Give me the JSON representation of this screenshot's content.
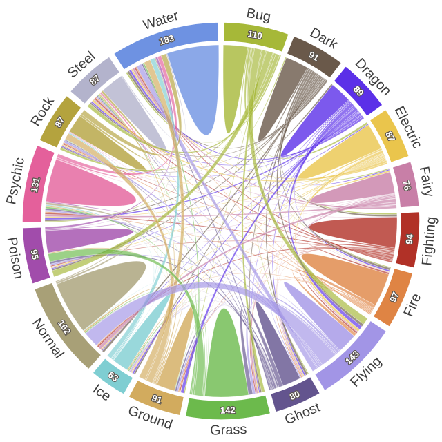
{
  "figure": {
    "background": "#ffffff",
    "label_color": "#3f3f3f",
    "value_text_color": "#ffffff",
    "value_outline_color": "#5b554e"
  },
  "chart_data": {
    "type": "chord",
    "title": "",
    "legend": "none",
    "grid": "off",
    "gap_degrees": 1.5,
    "start_angle_degrees": 0,
    "direction": "clockwise",
    "nodes": [
      {
        "name": "Bug",
        "value": 110,
        "color": "#a6b838"
      },
      {
        "name": "Dark",
        "value": 91,
        "color": "#6a594a"
      },
      {
        "name": "Dragon",
        "value": 89,
        "color": "#5b30e8"
      },
      {
        "name": "Electric",
        "value": 87,
        "color": "#eac54c"
      },
      {
        "name": "Fairy",
        "value": 76,
        "color": "#c87fa7"
      },
      {
        "name": "Fighting",
        "value": 94,
        "color": "#b13127"
      },
      {
        "name": "Fire",
        "value": 97,
        "color": "#df8444"
      },
      {
        "name": "Flying",
        "value": 143,
        "color": "#a295e6"
      },
      {
        "name": "Ghost",
        "value": 80,
        "color": "#63548e"
      },
      {
        "name": "Grass",
        "value": 142,
        "color": "#6cba4c"
      },
      {
        "name": "Ground",
        "value": 91,
        "color": "#d2ab5e"
      },
      {
        "name": "Ice",
        "value": 63,
        "color": "#7fced2"
      },
      {
        "name": "Normal",
        "value": 162,
        "color": "#a8a077"
      },
      {
        "name": "Poison",
        "value": 95,
        "color": "#a14cab"
      },
      {
        "name": "Psychic",
        "value": 131,
        "color": "#e4609b"
      },
      {
        "name": "Rock",
        "value": 87,
        "color": "#b4a33e"
      },
      {
        "name": "Steel",
        "value": 87,
        "color": "#b3b3cc"
      },
      {
        "name": "Water",
        "value": 183,
        "color": "#6e92e2"
      }
    ],
    "links_estimated_from_pixels": true,
    "links": [
      [
        "Bug",
        "Dark",
        2
      ],
      [
        "Bug",
        "Electric",
        4
      ],
      [
        "Bug",
        "Fairy",
        2
      ],
      [
        "Bug",
        "Fighting",
        3
      ],
      [
        "Bug",
        "Fire",
        2
      ],
      [
        "Bug",
        "Flying",
        13
      ],
      [
        "Bug",
        "Ghost",
        2
      ],
      [
        "Bug",
        "Grass",
        6
      ],
      [
        "Bug",
        "Ground",
        2
      ],
      [
        "Bug",
        "Poison",
        12
      ],
      [
        "Bug",
        "Psychic",
        2
      ],
      [
        "Bug",
        "Rock",
        4
      ],
      [
        "Bug",
        "Steel",
        7
      ],
      [
        "Bug",
        "Water",
        3
      ],
      [
        "Dark",
        "Dragon",
        3
      ],
      [
        "Dark",
        "Fighting",
        4
      ],
      [
        "Dark",
        "Fire",
        4
      ],
      [
        "Dark",
        "Flying",
        5
      ],
      [
        "Dark",
        "Ghost",
        4
      ],
      [
        "Dark",
        "Grass",
        3
      ],
      [
        "Dark",
        "Ice",
        3
      ],
      [
        "Dark",
        "Normal",
        4
      ],
      [
        "Dark",
        "Poison",
        3
      ],
      [
        "Dark",
        "Psychic",
        3
      ],
      [
        "Dark",
        "Rock",
        2
      ],
      [
        "Dark",
        "Steel",
        3
      ],
      [
        "Dark",
        "Water",
        4
      ],
      [
        "Dragon",
        "Electric",
        2
      ],
      [
        "Dragon",
        "Fairy",
        2
      ],
      [
        "Dragon",
        "Fire",
        3
      ],
      [
        "Dragon",
        "Flying",
        7
      ],
      [
        "Dragon",
        "Ghost",
        3
      ],
      [
        "Dragon",
        "Grass",
        2
      ],
      [
        "Dragon",
        "Ground",
        6
      ],
      [
        "Dragon",
        "Ice",
        3
      ],
      [
        "Dragon",
        "Normal",
        2
      ],
      [
        "Dragon",
        "Poison",
        2
      ],
      [
        "Dragon",
        "Psychic",
        4
      ],
      [
        "Dragon",
        "Rock",
        2
      ],
      [
        "Dragon",
        "Steel",
        3
      ],
      [
        "Dragon",
        "Water",
        4
      ],
      [
        "Electric",
        "Fairy",
        3
      ],
      [
        "Electric",
        "Fire",
        1
      ],
      [
        "Electric",
        "Flying",
        5
      ],
      [
        "Electric",
        "Ghost",
        2
      ],
      [
        "Electric",
        "Grass",
        2
      ],
      [
        "Electric",
        "Ground",
        1
      ],
      [
        "Electric",
        "Ice",
        2
      ],
      [
        "Electric",
        "Normal",
        2
      ],
      [
        "Electric",
        "Poison",
        2
      ],
      [
        "Electric",
        "Psychic",
        2
      ],
      [
        "Electric",
        "Rock",
        2
      ],
      [
        "Electric",
        "Steel",
        4
      ],
      [
        "Electric",
        "Water",
        3
      ],
      [
        "Fairy",
        "Fighting",
        1
      ],
      [
        "Fairy",
        "Fire",
        1
      ],
      [
        "Fairy",
        "Flying",
        2
      ],
      [
        "Fairy",
        "Ghost",
        2
      ],
      [
        "Fairy",
        "Grass",
        3
      ],
      [
        "Fairy",
        "Ice",
        1
      ],
      [
        "Fairy",
        "Normal",
        6
      ],
      [
        "Fairy",
        "Poison",
        1
      ],
      [
        "Fairy",
        "Psychic",
        4
      ],
      [
        "Fairy",
        "Rock",
        1
      ],
      [
        "Fairy",
        "Steel",
        2
      ],
      [
        "Fairy",
        "Water",
        4
      ],
      [
        "Fighting",
        "Fire",
        3
      ],
      [
        "Fighting",
        "Flying",
        3
      ],
      [
        "Fighting",
        "Ghost",
        1
      ],
      [
        "Fighting",
        "Grass",
        2
      ],
      [
        "Fighting",
        "Ground",
        2
      ],
      [
        "Fighting",
        "Ice",
        1
      ],
      [
        "Fighting",
        "Normal",
        3
      ],
      [
        "Fighting",
        "Poison",
        2
      ],
      [
        "Fighting",
        "Psychic",
        3
      ],
      [
        "Fighting",
        "Rock",
        2
      ],
      [
        "Fighting",
        "Steel",
        3
      ],
      [
        "Fighting",
        "Water",
        3
      ],
      [
        "Fire",
        "Flying",
        6
      ],
      [
        "Fire",
        "Ghost",
        2
      ],
      [
        "Fire",
        "Ground",
        2
      ],
      [
        "Fire",
        "Normal",
        2
      ],
      [
        "Fire",
        "Psychic",
        2
      ],
      [
        "Fire",
        "Rock",
        2
      ],
      [
        "Fire",
        "Steel",
        2
      ],
      [
        "Fire",
        "Water",
        2
      ],
      [
        "Flying",
        "Ghost",
        2
      ],
      [
        "Flying",
        "Grass",
        5
      ],
      [
        "Flying",
        "Ground",
        3
      ],
      [
        "Flying",
        "Ice",
        2
      ],
      [
        "Flying",
        "Normal",
        30
      ],
      [
        "Flying",
        "Poison",
        3
      ],
      [
        "Flying",
        "Psychic",
        3
      ],
      [
        "Flying",
        "Rock",
        4
      ],
      [
        "Flying",
        "Steel",
        2
      ],
      [
        "Flying",
        "Water",
        10
      ],
      [
        "Ghost",
        "Grass",
        8
      ],
      [
        "Ghost",
        "Ground",
        3
      ],
      [
        "Ghost",
        "Ice",
        1
      ],
      [
        "Ghost",
        "Normal",
        1
      ],
      [
        "Ghost",
        "Poison",
        4
      ],
      [
        "Ghost",
        "Psychic",
        3
      ],
      [
        "Ghost",
        "Rock",
        2
      ],
      [
        "Ghost",
        "Steel",
        2
      ],
      [
        "Ghost",
        "Water",
        3
      ],
      [
        "Grass",
        "Ground",
        1
      ],
      [
        "Grass",
        "Ice",
        2
      ],
      [
        "Grass",
        "Normal",
        2
      ],
      [
        "Grass",
        "Poison",
        15
      ],
      [
        "Grass",
        "Psychic",
        3
      ],
      [
        "Grass",
        "Rock",
        1
      ],
      [
        "Grass",
        "Steel",
        2
      ],
      [
        "Grass",
        "Water",
        3
      ],
      [
        "Ground",
        "Ice",
        2
      ],
      [
        "Ground",
        "Normal",
        3
      ],
      [
        "Ground",
        "Poison",
        2
      ],
      [
        "Ground",
        "Psychic",
        2
      ],
      [
        "Ground",
        "Rock",
        12
      ],
      [
        "Ground",
        "Steel",
        3
      ],
      [
        "Ground",
        "Water",
        12
      ],
      [
        "Ice",
        "Normal",
        1
      ],
      [
        "Ice",
        "Psychic",
        2
      ],
      [
        "Ice",
        "Rock",
        2
      ],
      [
        "Ice",
        "Steel",
        1
      ],
      [
        "Ice",
        "Water",
        9
      ],
      [
        "Normal",
        "Psychic",
        4
      ],
      [
        "Normal",
        "Water",
        2
      ],
      [
        "Poison",
        "Psychic",
        2
      ],
      [
        "Poison",
        "Rock",
        1
      ],
      [
        "Poison",
        "Water",
        4
      ],
      [
        "Psychic",
        "Rock",
        1
      ],
      [
        "Psychic",
        "Steel",
        3
      ],
      [
        "Psychic",
        "Water",
        7
      ],
      [
        "Rock",
        "Steel",
        4
      ],
      [
        "Rock",
        "Water",
        10
      ],
      [
        "Steel",
        "Water",
        2
      ]
    ]
  }
}
